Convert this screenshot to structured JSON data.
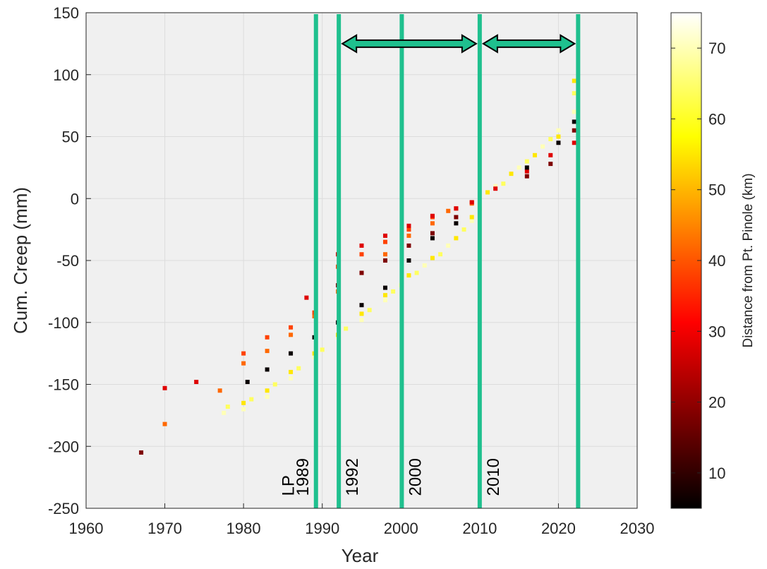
{
  "chart_data": {
    "type": "scatter",
    "title": "",
    "xlabel": "Year",
    "ylabel": "Cum. Creep (mm)",
    "xlim": [
      1960,
      2030
    ],
    "ylim": [
      -250,
      150
    ],
    "xticks": [
      "1960",
      "1970",
      "1980",
      "1990",
      "2000",
      "2010",
      "2020",
      "2030"
    ],
    "yticks": [
      "150",
      "100",
      "50",
      "0",
      "-50",
      "-100",
      "-150",
      "-200",
      "-250"
    ],
    "grid": true,
    "colorbar": {
      "label": "Distance from Pt. Pinole (km)",
      "range": [
        5,
        75
      ],
      "ticks": [
        "70",
        "60",
        "50",
        "40",
        "30",
        "20",
        "10"
      ],
      "colormap": "hot"
    },
    "vertical_lines": [
      {
        "x": 1989.2,
        "label": "1989"
      },
      {
        "x": 1992.1,
        "label": "1992"
      },
      {
        "x": 2000.1,
        "label": "2000"
      },
      {
        "x": 2010.0,
        "label": "2010"
      },
      {
        "x": 2022.5,
        "label": ""
      }
    ],
    "annotations": [
      {
        "text": "LP",
        "x": 1985.5,
        "y": -218
      }
    ],
    "interval_arrows": [
      {
        "x0": 1992.1,
        "x1": 2010.0,
        "y": 125
      },
      {
        "x0": 2010.0,
        "x1": 2022.5,
        "y": 125
      }
    ],
    "line_color": "#1fc08e",
    "arrow_fill": "#1fc08e",
    "series": [
      {
        "distance_km": 70,
        "points": [
          [
            1977.5,
            -173
          ],
          [
            1980,
            -170
          ],
          [
            1983,
            -160
          ],
          [
            1986,
            -145
          ],
          [
            1989,
            -128
          ],
          [
            1992,
            -112
          ],
          [
            1995,
            -98
          ],
          [
            1998,
            -82
          ],
          [
            2000,
            -70
          ],
          [
            2003,
            -54
          ],
          [
            2006,
            -38
          ],
          [
            2009,
            -18
          ],
          [
            2010,
            -5
          ],
          [
            2012,
            10
          ],
          [
            2015,
            25
          ],
          [
            2018,
            42
          ],
          [
            2020,
            55
          ],
          [
            2022,
            70
          ]
        ]
      },
      {
        "distance_km": 64,
        "points": [
          [
            1978,
            -168
          ],
          [
            1981,
            -162
          ],
          [
            1984,
            -150
          ],
          [
            1987,
            -137
          ],
          [
            1990,
            -122
          ],
          [
            1993,
            -105
          ],
          [
            1996,
            -90
          ],
          [
            1999,
            -75
          ],
          [
            2002,
            -60
          ],
          [
            2005,
            -45
          ],
          [
            2008,
            -25
          ],
          [
            2010,
            -8
          ],
          [
            2013,
            12
          ],
          [
            2016,
            30
          ],
          [
            2019,
            48
          ],
          [
            2022,
            85
          ]
        ]
      },
      {
        "distance_km": 55,
        "points": [
          [
            1980,
            -165
          ],
          [
            1983,
            -155
          ],
          [
            1986,
            -140
          ],
          [
            1989,
            -125
          ],
          [
            1992,
            -110
          ],
          [
            1995,
            -93
          ],
          [
            1998,
            -78
          ],
          [
            2001,
            -62
          ],
          [
            2004,
            -48
          ],
          [
            2007,
            -32
          ],
          [
            2009,
            -15
          ],
          [
            2011,
            5
          ],
          [
            2014,
            20
          ],
          [
            2017,
            35
          ],
          [
            2020,
            50
          ],
          [
            2022,
            95
          ]
        ]
      },
      {
        "distance_km": 42,
        "points": [
          [
            1970,
            -182
          ],
          [
            1977,
            -155
          ],
          [
            1980,
            -133
          ],
          [
            1983,
            -123
          ],
          [
            1986,
            -110
          ],
          [
            1989,
            -95
          ],
          [
            1992,
            -75
          ],
          [
            1995,
            -60
          ],
          [
            1998,
            -45
          ],
          [
            2001,
            -30
          ],
          [
            2004,
            -20
          ],
          [
            2006,
            -10
          ],
          [
            2009,
            -4
          ]
        ]
      },
      {
        "distance_km": 38,
        "points": [
          [
            1980,
            -125
          ],
          [
            1983,
            -112
          ],
          [
            1986,
            -104
          ],
          [
            1989,
            -92
          ],
          [
            1992,
            -55
          ],
          [
            1995,
            -45
          ],
          [
            1998,
            -35
          ],
          [
            2001,
            -25
          ],
          [
            2004,
            -15
          ],
          [
            2007,
            -8
          ],
          [
            2009,
            -3
          ]
        ]
      },
      {
        "distance_km": 28,
        "points": [
          [
            1970,
            -153
          ],
          [
            1974,
            -148
          ],
          [
            1988,
            -80
          ],
          [
            1992,
            -45
          ],
          [
            1995,
            -38
          ],
          [
            1998,
            -30
          ],
          [
            2001,
            -22
          ],
          [
            2004,
            -14
          ],
          [
            2007,
            -8
          ],
          [
            2009,
            -3
          ],
          [
            2012,
            8
          ],
          [
            2016,
            22
          ],
          [
            2019,
            35
          ],
          [
            2022,
            45
          ]
        ]
      },
      {
        "distance_km": 18,
        "points": [
          [
            1967,
            -205
          ],
          [
            1992,
            -70
          ],
          [
            1995,
            -60
          ],
          [
            1998,
            -50
          ],
          [
            2001,
            -38
          ],
          [
            2004,
            -28
          ],
          [
            2007,
            -15
          ],
          [
            2016,
            18
          ],
          [
            2019,
            28
          ],
          [
            2022,
            55
          ]
        ]
      },
      {
        "distance_km": 6,
        "points": [
          [
            1980.5,
            -148
          ],
          [
            1983,
            -138
          ],
          [
            1986,
            -125
          ],
          [
            1989,
            -112
          ],
          [
            1992,
            -100
          ],
          [
            1995,
            -86
          ],
          [
            1998,
            -72
          ],
          [
            2001,
            -50
          ],
          [
            2004,
            -32
          ],
          [
            2007,
            -20
          ],
          [
            2016,
            25
          ],
          [
            2020,
            45
          ],
          [
            2022,
            62
          ]
        ]
      }
    ]
  }
}
